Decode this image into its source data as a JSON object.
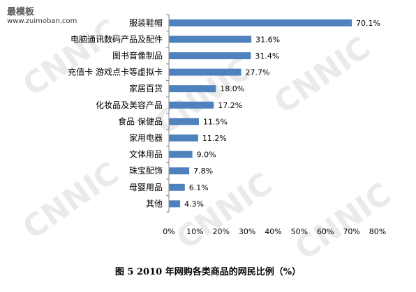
{
  "watermark": {
    "brand": "最模板",
    "url": "www.zuimoban.com",
    "logo_text": "CNNIC"
  },
  "caption": "图 5 2010 年网购各类商品的网民比例（%）",
  "colors": {
    "bar": "#4f81bd",
    "axis": "#868686"
  },
  "chart_data": {
    "type": "bar",
    "orientation": "horizontal",
    "title": "图 5 2010 年网购各类商品的网民比例（%）",
    "categories": [
      "服装鞋帽",
      "电脑通讯数码产品及配件",
      "图书音像制品",
      "充值卡 游戏点卡等虚拟卡",
      "家居百货",
      "化妆品及美容产品",
      "食品 保健品",
      "家用电器",
      "文体用品",
      "珠宝配饰",
      "母婴用品",
      "其他"
    ],
    "values": [
      70.1,
      31.6,
      31.4,
      27.7,
      18.0,
      17.2,
      11.5,
      11.2,
      9.0,
      7.8,
      6.1,
      4.3
    ],
    "value_labels": [
      "70.1%",
      "31.6%",
      "31.4%",
      "27.7%",
      "18.0%",
      "17.2%",
      "11.5%",
      "11.2%",
      "9.0%",
      "7.8%",
      "6.1%",
      "4.3%"
    ],
    "xlim": [
      0,
      80
    ],
    "xticks": [
      0,
      10,
      20,
      30,
      40,
      50,
      60,
      70,
      80
    ],
    "xtick_labels": [
      "0%",
      "10%",
      "20%",
      "30%",
      "40%",
      "50%",
      "60%",
      "70%",
      "80%"
    ],
    "grid": false,
    "legend": "none"
  }
}
